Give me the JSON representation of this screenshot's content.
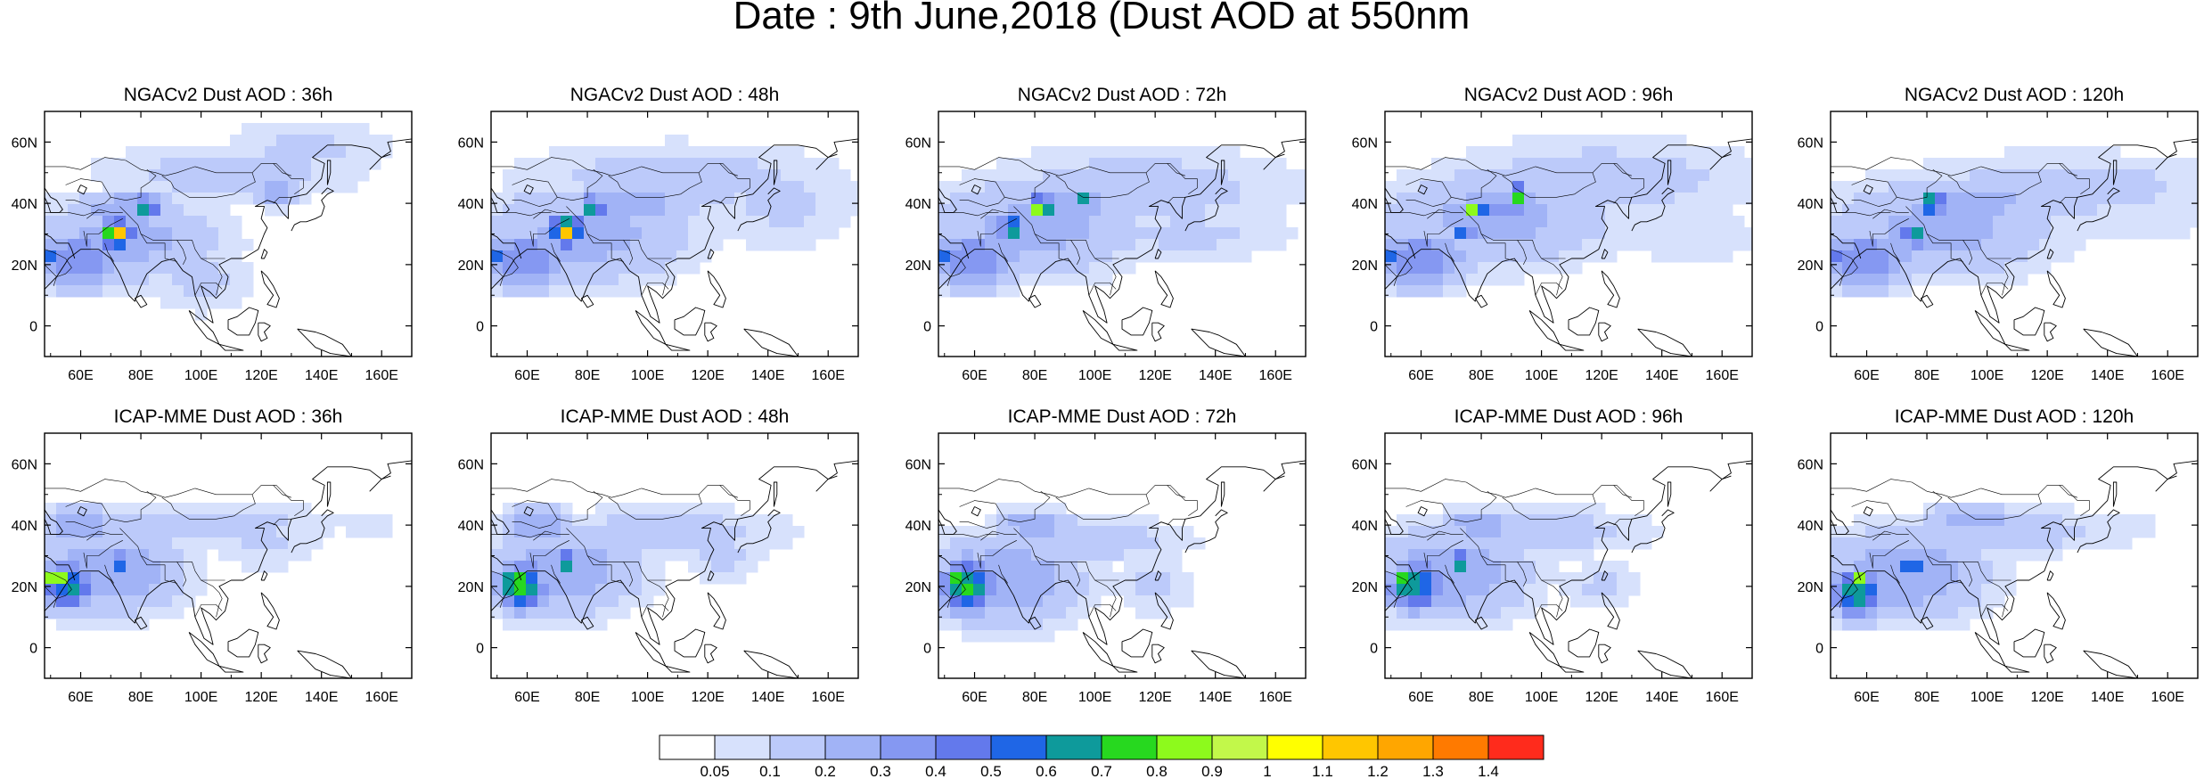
{
  "figure": {
    "title": "Date : 9th June,2018 (Dust AOD at 550nm"
  },
  "chart_data": {
    "type": "heatmap",
    "variable": "Dust AOD at 550nm",
    "map_extent": {
      "lon": [
        48,
        170
      ],
      "lat": [
        -10,
        70
      ]
    },
    "x_ticks": [
      {
        "value": 60,
        "label": "60E"
      },
      {
        "value": 80,
        "label": "80E"
      },
      {
        "value": 100,
        "label": "100E"
      },
      {
        "value": 120,
        "label": "120E"
      },
      {
        "value": 140,
        "label": "140E"
      },
      {
        "value": 160,
        "label": "160E"
      }
    ],
    "y_ticks": [
      {
        "value": 60,
        "label": "60N"
      },
      {
        "value": 40,
        "label": "40N"
      },
      {
        "value": 20,
        "label": "20N"
      },
      {
        "value": 0,
        "label": "0"
      }
    ],
    "colorbar": {
      "labels": [
        "0.05",
        "0.1",
        "0.2",
        "0.3",
        "0.4",
        "0.5",
        "0.6",
        "0.7",
        "0.8",
        "0.9",
        "1",
        "1.1",
        "1.2",
        "1.3",
        "1.4"
      ],
      "colors": [
        "#ffffff",
        "#d7e1fc",
        "#bccafa",
        "#a1b3f6",
        "#8598f2",
        "#6379ec",
        "#1f66e6",
        "#0e9a9b",
        "#27d81f",
        "#8dfa1c",
        "#c2f84a",
        "#ffff00",
        "#ffc600",
        "#ffa600",
        "#ff7a00",
        "#ff2b1c"
      ]
    },
    "panels": [
      {
        "title": "NGACv2 Dust AOD : 36h",
        "blobs": [
          {
            "lon": 75,
            "lat": 28,
            "rx": 32,
            "ry": 14,
            "aod": 0.25
          },
          {
            "lon": 60,
            "lat": 22,
            "rx": 16,
            "ry": 10,
            "aod": 0.4
          },
          {
            "lon": 110,
            "lat": 50,
            "rx": 45,
            "ry": 10,
            "aod": 0.15
          },
          {
            "lon": 135,
            "lat": 58,
            "rx": 30,
            "ry": 10,
            "aod": 0.12
          },
          {
            "lon": 125,
            "lat": 45,
            "rx": 8,
            "ry": 6,
            "aod": 0.3
          },
          {
            "lon": 100,
            "lat": 15,
            "rx": 20,
            "ry": 12,
            "aod": 0.12
          },
          {
            "lon": 75,
            "lat": 38,
            "rx": 18,
            "ry": 6,
            "aod": 0.3
          },
          {
            "lon": 72,
            "lat": 30,
            "rx": 6,
            "ry": 5,
            "aod": 0.9
          },
          {
            "lon": 72,
            "lat": 30,
            "rx": 2.5,
            "ry": 2.2,
            "aod": 1.35
          },
          {
            "lon": 82,
            "lat": 39,
            "rx": 4,
            "ry": 3,
            "aod": 0.85
          },
          {
            "lon": 50,
            "lat": 22,
            "rx": 4,
            "ry": 3,
            "aod": 0.6
          }
        ]
      },
      {
        "title": "NGACv2 Dust AOD : 48h",
        "blobs": [
          {
            "lon": 80,
            "lat": 30,
            "rx": 36,
            "ry": 16,
            "aod": 0.25
          },
          {
            "lon": 60,
            "lat": 22,
            "rx": 16,
            "ry": 10,
            "aod": 0.4
          },
          {
            "lon": 110,
            "lat": 48,
            "rx": 55,
            "ry": 12,
            "aod": 0.15
          },
          {
            "lon": 145,
            "lat": 40,
            "rx": 28,
            "ry": 16,
            "aod": 0.12
          },
          {
            "lon": 95,
            "lat": 40,
            "rx": 22,
            "ry": 6,
            "aod": 0.3
          },
          {
            "lon": 73,
            "lat": 31,
            "rx": 6,
            "ry": 5,
            "aod": 0.9
          },
          {
            "lon": 73,
            "lat": 31,
            "rx": 2.5,
            "ry": 2.2,
            "aod": 1.3
          },
          {
            "lon": 82,
            "lat": 39,
            "rx": 4,
            "ry": 3,
            "aod": 0.85
          },
          {
            "lon": 50,
            "lat": 22,
            "rx": 4,
            "ry": 3,
            "aod": 0.6
          }
        ]
      },
      {
        "title": "NGACv2 Dust AOD : 72h",
        "blobs": [
          {
            "lon": 80,
            "lat": 32,
            "rx": 36,
            "ry": 16,
            "aod": 0.25
          },
          {
            "lon": 60,
            "lat": 22,
            "rx": 16,
            "ry": 10,
            "aod": 0.4
          },
          {
            "lon": 115,
            "lat": 45,
            "rx": 55,
            "ry": 14,
            "aod": 0.15
          },
          {
            "lon": 130,
            "lat": 30,
            "rx": 40,
            "ry": 10,
            "aod": 0.12
          },
          {
            "lon": 90,
            "lat": 40,
            "rx": 20,
            "ry": 6,
            "aod": 0.3
          },
          {
            "lon": 72,
            "lat": 32,
            "rx": 4,
            "ry": 3,
            "aod": 0.9
          },
          {
            "lon": 82,
            "lat": 39,
            "rx": 4,
            "ry": 3,
            "aod": 1.05
          },
          {
            "lon": 97,
            "lat": 41,
            "rx": 3,
            "ry": 2,
            "aod": 0.8
          },
          {
            "lon": 50,
            "lat": 22,
            "rx": 4,
            "ry": 3,
            "aod": 0.6
          }
        ]
      },
      {
        "title": "NGACv2 Dust AOD : 96h",
        "blobs": [
          {
            "lon": 85,
            "lat": 35,
            "rx": 38,
            "ry": 16,
            "aod": 0.25
          },
          {
            "lon": 60,
            "lat": 22,
            "rx": 16,
            "ry": 10,
            "aod": 0.4
          },
          {
            "lon": 120,
            "lat": 48,
            "rx": 55,
            "ry": 14,
            "aod": 0.15
          },
          {
            "lon": 150,
            "lat": 30,
            "rx": 25,
            "ry": 12,
            "aod": 0.1
          },
          {
            "lon": 88,
            "lat": 38,
            "rx": 20,
            "ry": 6,
            "aod": 0.35
          },
          {
            "lon": 78,
            "lat": 38,
            "rx": 4,
            "ry": 3,
            "aod": 0.9
          },
          {
            "lon": 93,
            "lat": 43,
            "rx": 3,
            "ry": 3,
            "aod": 1.0
          },
          {
            "lon": 74,
            "lat": 29,
            "rx": 4,
            "ry": 2,
            "aod": 0.85
          },
          {
            "lon": 50,
            "lat": 22,
            "rx": 4,
            "ry": 3,
            "aod": 0.6
          }
        ]
      },
      {
        "title": "NGACv2 Dust AOD : 120h",
        "blobs": [
          {
            "lon": 85,
            "lat": 32,
            "rx": 38,
            "ry": 16,
            "aod": 0.25
          },
          {
            "lon": 60,
            "lat": 22,
            "rx": 16,
            "ry": 10,
            "aod": 0.4
          },
          {
            "lon": 125,
            "lat": 45,
            "rx": 55,
            "ry": 12,
            "aod": 0.15
          },
          {
            "lon": 150,
            "lat": 35,
            "rx": 25,
            "ry": 10,
            "aod": 0.1
          },
          {
            "lon": 95,
            "lat": 40,
            "rx": 24,
            "ry": 6,
            "aod": 0.3
          },
          {
            "lon": 82,
            "lat": 40,
            "rx": 4,
            "ry": 3,
            "aod": 1.0
          },
          {
            "lon": 76,
            "lat": 29,
            "rx": 5,
            "ry": 2.5,
            "aod": 0.9
          },
          {
            "lon": 50,
            "lat": 22,
            "rx": 4,
            "ry": 3,
            "aod": 0.5
          }
        ]
      },
      {
        "title": "ICAP-MME Dust AOD : 36h",
        "blobs": [
          {
            "lon": 70,
            "lat": 25,
            "rx": 25,
            "ry": 14,
            "aod": 0.3
          },
          {
            "lon": 100,
            "lat": 40,
            "rx": 45,
            "ry": 8,
            "aod": 0.15
          },
          {
            "lon": 120,
            "lat": 35,
            "rx": 20,
            "ry": 10,
            "aod": 0.12
          },
          {
            "lon": 155,
            "lat": 40,
            "rx": 10,
            "ry": 5,
            "aod": 0.1
          },
          {
            "lon": 60,
            "lat": 40,
            "rx": 12,
            "ry": 6,
            "aod": 0.3
          },
          {
            "lon": 56,
            "lat": 20,
            "rx": 8,
            "ry": 8,
            "aod": 0.65
          },
          {
            "lon": 52,
            "lat": 22,
            "rx": 4,
            "ry": 4,
            "aod": 1.1
          },
          {
            "lon": 51,
            "lat": 22,
            "rx": 2,
            "ry": 2,
            "aod": 1.35
          },
          {
            "lon": 72,
            "lat": 28,
            "rx": 3,
            "ry": 3,
            "aod": 0.8
          }
        ]
      },
      {
        "title": "ICAP-MME Dust AOD : 48h",
        "blobs": [
          {
            "lon": 72,
            "lat": 25,
            "rx": 26,
            "ry": 14,
            "aod": 0.3
          },
          {
            "lon": 105,
            "lat": 38,
            "rx": 45,
            "ry": 8,
            "aod": 0.15
          },
          {
            "lon": 125,
            "lat": 30,
            "rx": 15,
            "ry": 10,
            "aod": 0.12
          },
          {
            "lon": 63,
            "lat": 40,
            "rx": 12,
            "ry": 6,
            "aod": 0.3
          },
          {
            "lon": 58,
            "lat": 20,
            "rx": 8,
            "ry": 8,
            "aod": 0.75
          },
          {
            "lon": 56,
            "lat": 21,
            "rx": 4,
            "ry": 4,
            "aod": 1.1
          },
          {
            "lon": 57,
            "lat": 21,
            "rx": 2,
            "ry": 2,
            "aod": 1.3
          },
          {
            "lon": 73,
            "lat": 28,
            "rx": 3,
            "ry": 3,
            "aod": 0.8
          }
        ]
      },
      {
        "title": "ICAP-MME Dust AOD : 72h",
        "blobs": [
          {
            "lon": 70,
            "lat": 22,
            "rx": 26,
            "ry": 15,
            "aod": 0.3
          },
          {
            "lon": 100,
            "lat": 35,
            "rx": 35,
            "ry": 8,
            "aod": 0.15
          },
          {
            "lon": 120,
            "lat": 20,
            "rx": 15,
            "ry": 10,
            "aod": 0.12
          },
          {
            "lon": 80,
            "lat": 40,
            "rx": 14,
            "ry": 5,
            "aod": 0.3
          },
          {
            "lon": 58,
            "lat": 20,
            "rx": 9,
            "ry": 9,
            "aod": 0.75
          },
          {
            "lon": 54,
            "lat": 21,
            "rx": 4,
            "ry": 3,
            "aod": 1.1
          },
          {
            "lon": 53,
            "lat": 21,
            "rx": 2,
            "ry": 2,
            "aod": 1.3
          }
        ]
      },
      {
        "title": "ICAP-MME Dust AOD : 96h",
        "blobs": [
          {
            "lon": 70,
            "lat": 24,
            "rx": 26,
            "ry": 15,
            "aod": 0.3
          },
          {
            "lon": 100,
            "lat": 38,
            "rx": 40,
            "ry": 8,
            "aod": 0.15
          },
          {
            "lon": 120,
            "lat": 20,
            "rx": 15,
            "ry": 8,
            "aod": 0.12
          },
          {
            "lon": 80,
            "lat": 40,
            "rx": 14,
            "ry": 5,
            "aod": 0.3
          },
          {
            "lon": 58,
            "lat": 20,
            "rx": 9,
            "ry": 8,
            "aod": 0.7
          },
          {
            "lon": 54,
            "lat": 21,
            "rx": 4,
            "ry": 3,
            "aod": 1.1
          },
          {
            "lon": 53,
            "lat": 21,
            "rx": 2,
            "ry": 2,
            "aod": 1.3
          },
          {
            "lon": 73,
            "lat": 28,
            "rx": 3,
            "ry": 3,
            "aod": 0.8
          }
        ]
      },
      {
        "title": "ICAP-MME Dust AOD : 120h",
        "blobs": [
          {
            "lon": 72,
            "lat": 24,
            "rx": 28,
            "ry": 15,
            "aod": 0.3
          },
          {
            "lon": 105,
            "lat": 38,
            "rx": 45,
            "ry": 8,
            "aod": 0.15
          },
          {
            "lon": 140,
            "lat": 40,
            "rx": 20,
            "ry": 6,
            "aod": 0.1
          },
          {
            "lon": 95,
            "lat": 42,
            "rx": 15,
            "ry": 5,
            "aod": 0.3
          },
          {
            "lon": 57,
            "lat": 18,
            "rx": 9,
            "ry": 8,
            "aod": 0.7
          },
          {
            "lon": 57,
            "lat": 22,
            "rx": 4,
            "ry": 3,
            "aod": 0.9
          },
          {
            "lon": 75,
            "lat": 27,
            "rx": 3,
            "ry": 3,
            "aod": 0.85
          }
        ]
      }
    ]
  }
}
